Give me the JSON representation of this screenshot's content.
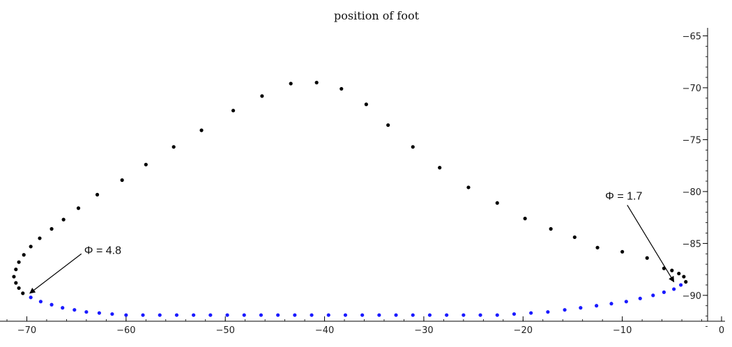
{
  "chart_data": {
    "type": "scatter",
    "title": "position of foot",
    "xlabel": "",
    "ylabel": "",
    "xlim": [
      -72,
      0
    ],
    "ylim": [
      -93.5,
      -64.5
    ],
    "x_ticks": [
      -70,
      -60,
      -50,
      -40,
      -30,
      -20,
      -10,
      0
    ],
    "y_ticks": [
      -65,
      -70,
      -75,
      -80,
      -85,
      -90
    ],
    "grid": false,
    "legend": "none",
    "colors": {
      "upper": "#000000",
      "lower": "#1a1aff",
      "axis": "#000000"
    },
    "series": [
      {
        "color": "#000000",
        "points": [
          [
            -3.6,
            -88.7
          ],
          [
            -3.8,
            -88.2
          ],
          [
            -4.3,
            -87.9
          ],
          [
            -5.0,
            -87.6
          ],
          [
            -5.8,
            -87.4
          ],
          [
            -7.5,
            -86.4
          ],
          [
            -10.0,
            -85.8
          ],
          [
            -12.5,
            -85.4
          ],
          [
            -14.8,
            -84.4
          ],
          [
            -17.2,
            -83.6
          ],
          [
            -19.8,
            -82.6
          ],
          [
            -22.6,
            -81.1
          ],
          [
            -25.5,
            -79.6
          ],
          [
            -28.4,
            -77.7
          ],
          [
            -31.1,
            -75.7
          ],
          [
            -33.6,
            -73.6
          ],
          [
            -35.8,
            -71.6
          ],
          [
            -38.3,
            -70.1
          ],
          [
            -40.8,
            -69.5
          ],
          [
            -43.4,
            -69.6
          ],
          [
            -46.3,
            -70.8
          ],
          [
            -49.2,
            -72.2
          ],
          [
            -52.4,
            -74.1
          ],
          [
            -55.2,
            -75.7
          ],
          [
            -58.0,
            -77.4
          ],
          [
            -60.4,
            -78.9
          ],
          [
            -62.9,
            -80.3
          ],
          [
            -64.8,
            -81.6
          ],
          [
            -66.3,
            -82.7
          ],
          [
            -67.5,
            -83.6
          ],
          [
            -68.7,
            -84.5
          ],
          [
            -69.6,
            -85.3
          ],
          [
            -70.3,
            -86.1
          ],
          [
            -70.8,
            -86.8
          ],
          [
            -71.1,
            -87.5
          ],
          [
            -71.3,
            -88.2
          ],
          [
            -71.1,
            -88.8
          ],
          [
            -70.8,
            -89.3
          ],
          [
            -70.4,
            -89.8
          ]
        ]
      },
      {
        "color": "#1a1aff",
        "points": [
          [
            -69.6,
            -90.2
          ],
          [
            -68.6,
            -90.6
          ],
          [
            -67.5,
            -90.9
          ],
          [
            -66.4,
            -91.2
          ],
          [
            -65.2,
            -91.4
          ],
          [
            -64.0,
            -91.6
          ],
          [
            -62.7,
            -91.7
          ],
          [
            -61.4,
            -91.8
          ],
          [
            -60.0,
            -91.9
          ],
          [
            -58.3,
            -91.9
          ],
          [
            -56.6,
            -91.9
          ],
          [
            -54.9,
            -91.9
          ],
          [
            -53.2,
            -91.9
          ],
          [
            -51.5,
            -91.9
          ],
          [
            -49.8,
            -91.9
          ],
          [
            -48.1,
            -91.9
          ],
          [
            -46.4,
            -91.9
          ],
          [
            -44.7,
            -91.9
          ],
          [
            -43.0,
            -91.9
          ],
          [
            -41.3,
            -91.9
          ],
          [
            -39.6,
            -91.9
          ],
          [
            -37.9,
            -91.9
          ],
          [
            -36.2,
            -91.9
          ],
          [
            -34.5,
            -91.9
          ],
          [
            -32.8,
            -91.9
          ],
          [
            -31.1,
            -91.9
          ],
          [
            -29.4,
            -91.9
          ],
          [
            -27.7,
            -91.9
          ],
          [
            -26.0,
            -91.9
          ],
          [
            -24.3,
            -91.9
          ],
          [
            -22.6,
            -91.9
          ],
          [
            -20.9,
            -91.8
          ],
          [
            -19.2,
            -91.7
          ],
          [
            -17.5,
            -91.6
          ],
          [
            -15.8,
            -91.4
          ],
          [
            -14.2,
            -91.2
          ],
          [
            -12.6,
            -91.0
          ],
          [
            -11.1,
            -90.8
          ],
          [
            -9.6,
            -90.6
          ],
          [
            -8.2,
            -90.3
          ],
          [
            -6.9,
            -90.0
          ],
          [
            -5.8,
            -89.7
          ],
          [
            -4.8,
            -89.4
          ],
          [
            -4.1,
            -89.0
          ]
        ]
      }
    ],
    "annotations": [
      {
        "text": "Φ = 4.8",
        "from": [
          -64.5,
          -86.0
        ],
        "to": [
          -69.7,
          -89.8
        ]
      },
      {
        "text": "Φ = 1.7",
        "from": [
          -9.5,
          -81.3
        ],
        "to": [
          -4.8,
          -88.7
        ]
      }
    ]
  }
}
